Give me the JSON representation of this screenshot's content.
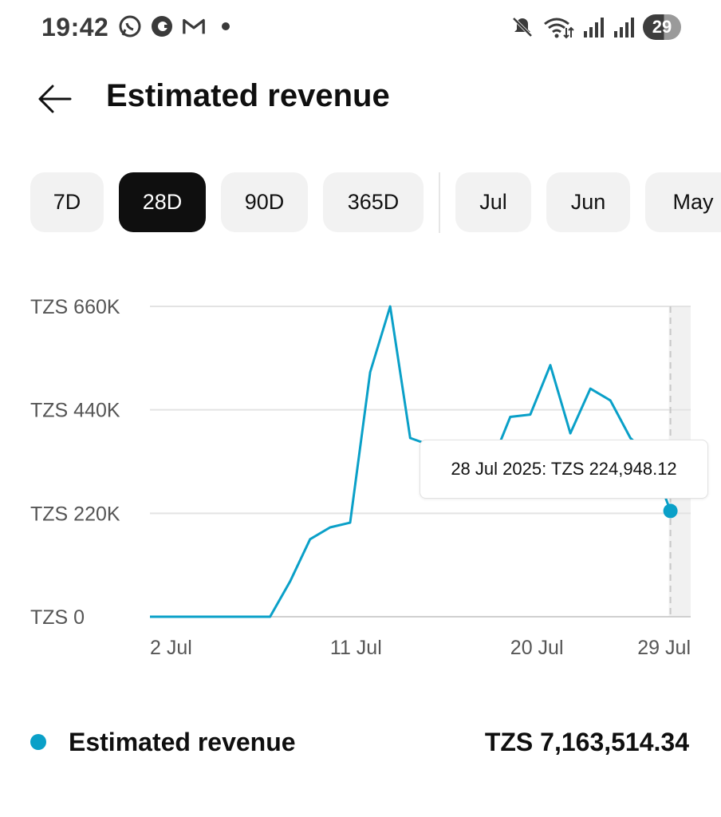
{
  "status_bar": {
    "time": "19:42",
    "left_icons": [
      "whatsapp-icon",
      "app-icon",
      "gmail-icon",
      "notification-dot-icon"
    ],
    "right_icons": [
      "mute-icon",
      "wifi-icon",
      "signal-icon",
      "signal-icon"
    ],
    "battery": "29"
  },
  "header": {
    "title": "Estimated revenue"
  },
  "chips": [
    {
      "label": "7D",
      "selected": false
    },
    {
      "label": "28D",
      "selected": true
    },
    {
      "label": "90D",
      "selected": false
    },
    {
      "label": "365D",
      "selected": false
    },
    {
      "label": "Jul",
      "selected": false
    },
    {
      "label": "Jun",
      "selected": false
    },
    {
      "label": "May",
      "selected": false
    }
  ],
  "tooltip": {
    "text": "28 Jul 2025: TZS 224,948.12"
  },
  "legend": {
    "label": "Estimated revenue",
    "value": "TZS 7,163,514.34"
  },
  "colors": {
    "series": "#0aa0c8",
    "selected_chip": "#0f0f0f"
  },
  "chart_data": {
    "type": "line",
    "x": [
      "2 Jul",
      "3 Jul",
      "4 Jul",
      "5 Jul",
      "6 Jul",
      "7 Jul",
      "8 Jul",
      "9 Jul",
      "10 Jul",
      "11 Jul",
      "12 Jul",
      "13 Jul",
      "14 Jul",
      "15 Jul",
      "16 Jul",
      "17 Jul",
      "18 Jul",
      "19 Jul",
      "20 Jul",
      "21 Jul",
      "22 Jul",
      "23 Jul",
      "24 Jul",
      "25 Jul",
      "26 Jul",
      "27 Jul",
      "28 Jul"
    ],
    "series": [
      {
        "values": [
          0,
          0,
          0,
          0,
          0,
          0,
          0,
          75000,
          165000,
          190000,
          200000,
          520000,
          660000,
          380000,
          365000,
          330000,
          320000,
          320000,
          425000,
          430000,
          535000,
          390000,
          485000,
          460000,
          380000,
          340000,
          224948.12
        ]
      }
    ],
    "yticks": [
      "TZS 660K",
      "TZS 440K",
      "TZS 220K",
      "TZS 0"
    ],
    "ytick_values": [
      660000,
      440000,
      220000,
      0
    ],
    "xticks": [
      "2 Jul",
      "11 Jul",
      "20 Jul",
      "29 Jul"
    ],
    "ylim": [
      0,
      660000
    ],
    "highlight_index": 26,
    "grid": true
  }
}
